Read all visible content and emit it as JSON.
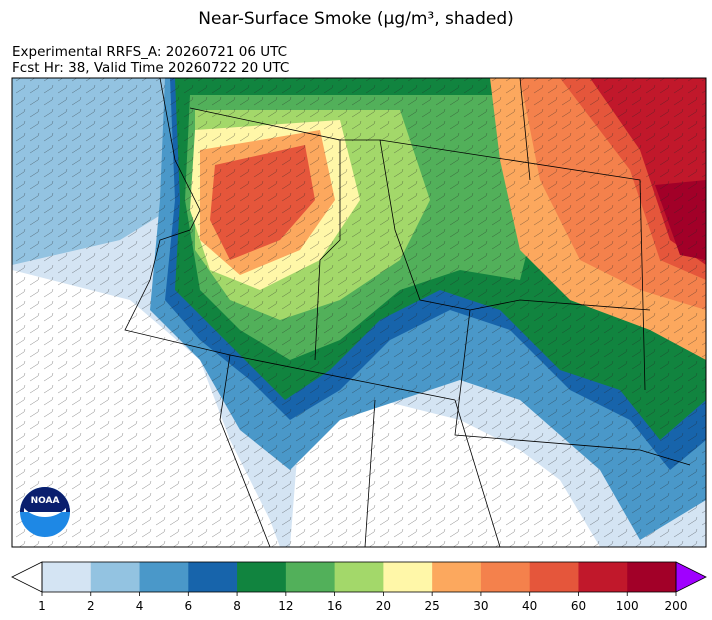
{
  "title": "Near-Surface Smoke (μg/m³, shaded)",
  "subtitle": [
    "Experimental RRFS_A: 20260721 06 UTC",
    "Fcst Hr: 38, Valid Time 20260722 20 UTC"
  ],
  "colorbar": {
    "levels": [
      1,
      2,
      4,
      6,
      8,
      12,
      16,
      20,
      25,
      30,
      40,
      60,
      100,
      200
    ],
    "colors": [
      "#d4e4f3",
      "#93c3e1",
      "#4a98c9",
      "#1764ab",
      "#11843f",
      "#52b05a",
      "#a3d86a",
      "#fff7a8",
      "#fca85e",
      "#f4814c",
      "#e5563b",
      "#c1182b",
      "#a20028"
    ],
    "under_color": "#ffffff",
    "over_color": "#a000ff"
  }
}
